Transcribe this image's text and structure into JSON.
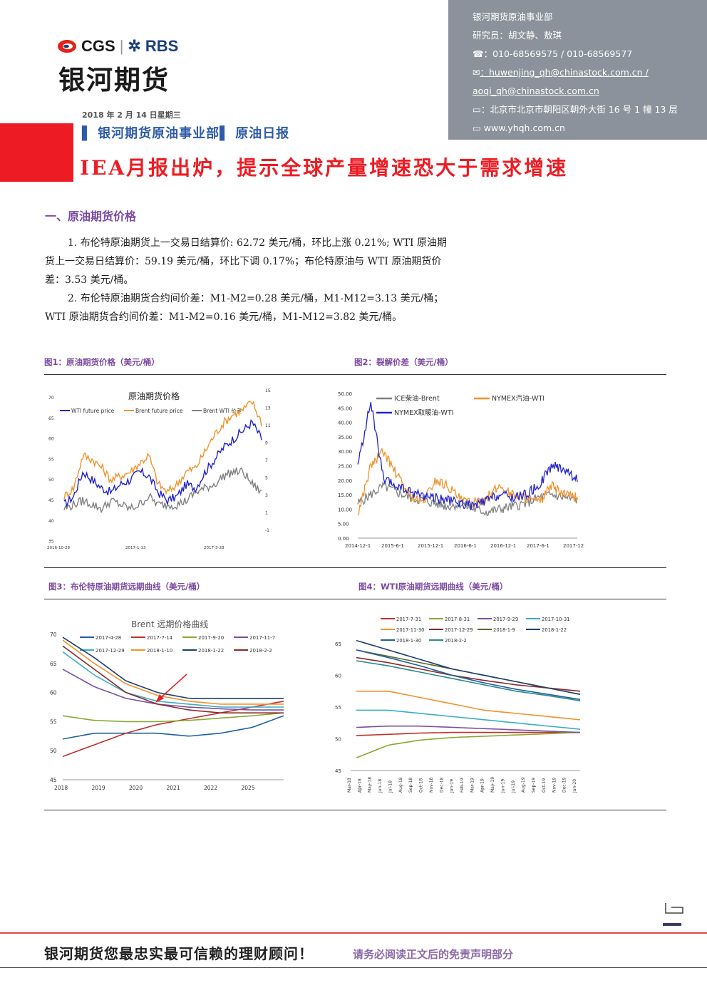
{
  "header": {
    "logo_cgs": "CGS",
    "logo_rbs": "RBS",
    "logo_cn": "银河期货",
    "date": "2018 年 2 月 14 日星期三",
    "dept_prefix": "银河期货原油事业部",
    "dept_suffix": "原油日报",
    "headline": "IEA月报出炉，提示全球产量增速恐大于需求增速"
  },
  "info": {
    "dept": "银河期货原油事业部",
    "researchers": "研究员：胡文静、敖琪",
    "phone": "：010-68569575 / 010-68569577",
    "email1": "：huwenjing_qh@chinastock.com.cn /",
    "email2": "aoqi_qh@chinastock.com.cn",
    "address": "：北京市北京市朝阳区朝外大街 16 号 1 幢 13 层",
    "website": "www.yhqh.com.cn"
  },
  "section1": {
    "title": "一、原油期货价格",
    "p1": "1. 布伦特原油期货上一交易日结算价: 62.72 美元/桶，环比上涨 0.21%; WTI 原油期货上一交易日结算价：59.19 美元/桶，环比下调 0.17%；布伦特原油与 WTI 原油期货价差：3.53 美元/桶。",
    "p2": "2. 布伦特原油期货合约间价差：M1-M2=0.28 美元/桶，M1-M12=3.13 美元/桶；WTI 原油期货合约间价差：M1-M2=0.16 美元/桶，M1-M12=3.82 美元/桶。"
  },
  "figures": {
    "f1": "图1：原油期货价格（美元/桶）",
    "f2": "图2：裂解价差（美元/桶）",
    "f3": "图3：布伦特原油期货远期曲线（美元/桶）",
    "f4": "图4：WTI原油期货远期曲线（美元/桶）"
  },
  "footer": {
    "slogan": "银河期货您最忠实最可信赖的理财顾问！",
    "disclaimer": "请务必阅读正文后的免责声明部分"
  },
  "chart_data": [
    {
      "type": "line",
      "title": "原油期货价格",
      "series": [
        {
          "name": "WTI future price",
          "color": "#2222cc",
          "values": [
            44,
            46,
            52,
            50,
            48,
            47,
            49,
            50,
            52,
            51,
            47,
            45,
            46,
            49,
            48,
            52,
            55,
            58,
            60,
            62,
            64,
            60
          ]
        },
        {
          "name": "Brent future price",
          "color": "#f0922c",
          "values": [
            46,
            48,
            56,
            55,
            53,
            50,
            51,
            52,
            54,
            56,
            49,
            47,
            49,
            52,
            53,
            57,
            61,
            64,
            66,
            67,
            69,
            64
          ]
        },
        {
          "name": "Brent WTI 价差",
          "color": "#808080",
          "values": [
            43,
            44,
            45,
            44,
            43,
            45,
            44,
            43,
            44,
            46,
            44,
            44,
            44,
            45,
            47,
            48,
            49,
            51,
            52,
            52,
            49,
            47
          ]
        }
      ],
      "x_ticks": [
        "2016-10-28",
        "2017-1-13",
        "2017-3-28"
      ],
      "y_left": [
        "70",
        "65",
        "60",
        "55",
        "50",
        "45",
        "40",
        "35"
      ],
      "y_right": [
        "15",
        "13",
        "11",
        "9",
        "7",
        "5",
        "3",
        "1",
        "-1"
      ]
    },
    {
      "type": "line",
      "series": [
        {
          "name": "ICE柴油-Brent",
          "color": "#808080",
          "values": [
            12,
            15,
            18,
            16,
            14,
            13,
            12,
            11,
            12,
            10,
            9,
            10,
            11,
            12,
            14,
            15,
            14,
            13
          ]
        },
        {
          "name": "NYMEX汽油-WTI",
          "color": "#f0922c",
          "values": [
            8,
            25,
            30,
            22,
            15,
            12,
            20,
            18,
            13,
            12,
            14,
            18,
            15,
            14,
            12,
            18,
            15,
            14
          ]
        },
        {
          "name": "NYMEX取暖油-WTI",
          "color": "#2222cc",
          "values": [
            25,
            47,
            20,
            18,
            16,
            15,
            14,
            13,
            12,
            11,
            13,
            15,
            14,
            15,
            18,
            25,
            24,
            20
          ]
        }
      ],
      "x_ticks": [
        "2014-12-1",
        "2015-6-1",
        "2015-12-1",
        "2016-6-1",
        "2016-12-1",
        "2017-6-1",
        "2017-12-1"
      ],
      "y_ticks": [
        "50.00",
        "45.00",
        "40.00",
        "35.00",
        "30.00",
        "25.00",
        "20.00",
        "15.00",
        "10.00",
        "5.00",
        "0.00"
      ],
      "ylim": [
        0,
        50
      ]
    },
    {
      "type": "line",
      "title": "Brent 远期价格曲线",
      "x_ticks": [
        "2018",
        "2019",
        "2020",
        "2021",
        "2022",
        "2025"
      ],
      "y_ticks": [
        "70",
        "65",
        "60",
        "55",
        "50",
        "45"
      ],
      "ylim": [
        45,
        70
      ],
      "series": [
        {
          "name": "2017-4-28",
          "color": "#1f5fa0",
          "values": [
            52,
            53,
            53,
            53,
            52.5,
            53,
            54,
            56
          ]
        },
        {
          "name": "2017-7-14",
          "color": "#c0302a",
          "values": [
            49,
            51,
            53,
            54.5,
            55.5,
            56.5,
            57.5,
            58.5
          ]
        },
        {
          "name": "2017-9-20",
          "color": "#8aa832",
          "values": [
            56,
            55.2,
            55,
            55,
            55.2,
            55.6,
            56,
            56.5
          ]
        },
        {
          "name": "2017-11-7",
          "color": "#7a50a0",
          "values": [
            64,
            61,
            59,
            58,
            57.5,
            57.2,
            57,
            57
          ]
        },
        {
          "name": "2017-12-29",
          "color": "#3aaec8",
          "values": [
            67,
            63,
            60,
            58.5,
            58,
            57.5,
            57.5,
            57.5
          ]
        },
        {
          "name": "2018-1-10",
          "color": "#f0922c",
          "values": [
            69,
            65,
            61.5,
            59.5,
            58.5,
            58,
            58,
            58
          ]
        },
        {
          "name": "2018-1-22",
          "color": "#1c3f6e",
          "values": [
            69.5,
            66,
            62,
            60,
            59,
            59,
            59,
            59
          ]
        },
        {
          "name": "2018-2-2",
          "color": "#8a2a2a",
          "values": [
            68,
            64,
            60,
            58,
            57,
            56.5,
            56.5,
            56.5
          ]
        }
      ]
    },
    {
      "type": "line",
      "x_ticks": [
        "Mar-18",
        "Apr-18",
        "May-18",
        "Jun-18",
        "Jul-18",
        "Aug-18",
        "Sep-18",
        "Oct-18",
        "Nov-18",
        "Dec-18",
        "Jan-19",
        "Feb-19",
        "Mar-19",
        "Apr-19",
        "May-19",
        "Jun-19",
        "Jul-19",
        "Aug-19",
        "Sep-19",
        "Oct-19",
        "Nov-19",
        "Dec-19",
        "Jan-20"
      ],
      "y_ticks": [
        "65",
        "60",
        "55",
        "50",
        "45"
      ],
      "ylim": [
        45,
        65
      ],
      "series": [
        {
          "name": "2017-7-31",
          "color": "#c0302a",
          "values": [
            50.5,
            50.7,
            50.9,
            51,
            51,
            51,
            51,
            51
          ]
        },
        {
          "name": "2017-8-31",
          "color": "#8aa832",
          "values": [
            47,
            49,
            49.8,
            50.2,
            50.4,
            50.6,
            50.8,
            51
          ]
        },
        {
          "name": "2017-9-29",
          "color": "#7a50a0",
          "values": [
            51.8,
            52,
            52,
            51.8,
            51.6,
            51.4,
            51.2,
            51
          ]
        },
        {
          "name": "2017-10-31",
          "color": "#3aaec8",
          "values": [
            54.5,
            54.5,
            54,
            53.5,
            53,
            52.5,
            52,
            51.5
          ]
        },
        {
          "name": "2017-11-30",
          "color": "#f0922c",
          "values": [
            57.5,
            57.5,
            56.5,
            55.5,
            54.5,
            54,
            53.5,
            53
          ]
        },
        {
          "name": "2017-12-29",
          "color": "#8a2a2a",
          "values": [
            62.8,
            62,
            61,
            60,
            59.2,
            58.5,
            58,
            57.5
          ]
        },
        {
          "name": "2018-1-9",
          "color": "#5a6a2a",
          "values": [
            64,
            63,
            62,
            61,
            60,
            59,
            58,
            57
          ]
        },
        {
          "name": "2018-1-22",
          "color": "#1c3f6e",
          "values": [
            65.5,
            64,
            62.5,
            61,
            60,
            59,
            58,
            57
          ]
        },
        {
          "name": "2018-1-30",
          "color": "#1f5fa0",
          "values": [
            64,
            62.8,
            61.5,
            60,
            58.8,
            57.8,
            57,
            56.2
          ]
        },
        {
          "name": "2018-2-2",
          "color": "#2a8a8a",
          "values": [
            62.3,
            61.5,
            60.5,
            59.5,
            58.5,
            57.5,
            56.8,
            56
          ]
        }
      ]
    }
  ]
}
